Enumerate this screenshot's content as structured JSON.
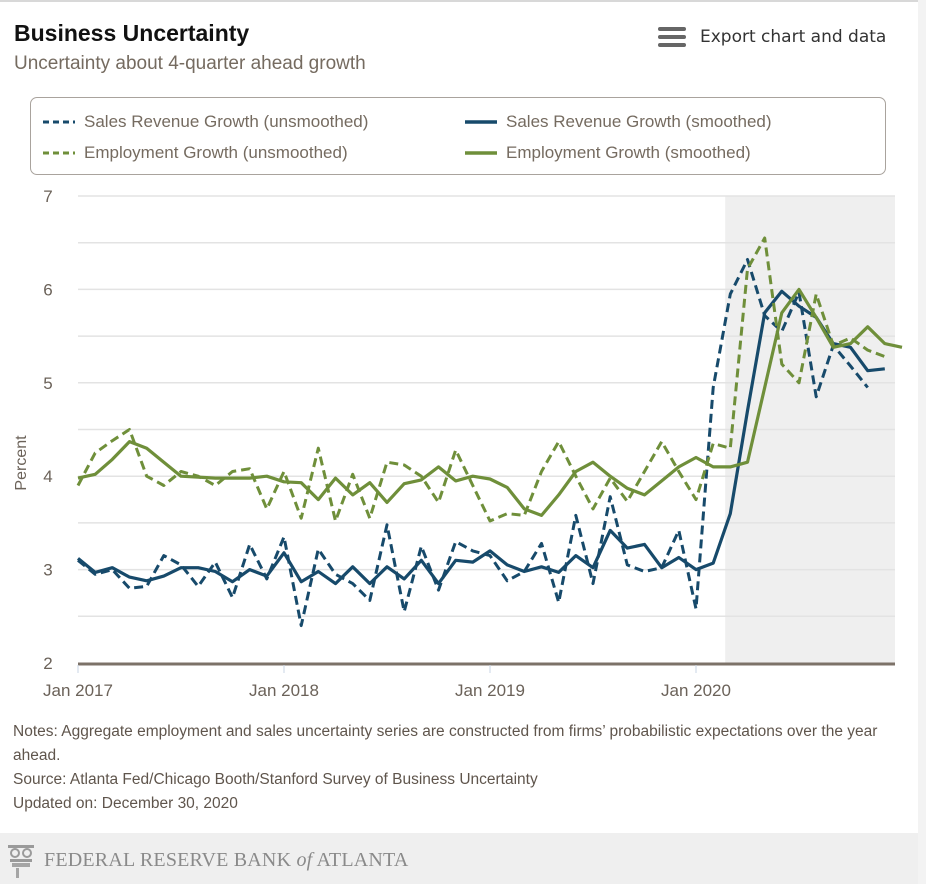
{
  "header": {
    "title": "Business Uncertainty",
    "subtitle": "Uncertainty about 4-quarter ahead growth",
    "export_label": "Export chart and data",
    "export_icon": "hamburger-menu-icon"
  },
  "colors": {
    "sales": "#174a6b",
    "employment": "#6f8f3a",
    "recession_shade": "#efefef",
    "axis_text": "#6b6259",
    "axis_line": "#7c7268"
  },
  "chart_data": {
    "type": "line",
    "title": "Business Uncertainty",
    "subtitle": "Uncertainty about 4-quarter ahead growth",
    "xlabel": "",
    "ylabel": "Percent",
    "ylim": [
      2,
      7
    ],
    "yticks": [
      "2",
      "3",
      "4",
      "5",
      "6",
      "7"
    ],
    "grid": true,
    "legend_position": "top",
    "xticks": [
      "Jan 2017",
      "Jan 2018",
      "Jan 2019",
      "Jan 2020"
    ],
    "x_start": "Jan 2017",
    "x_frequency": "monthly",
    "shaded_period": {
      "from_month_index": 37.7,
      "to_month_index": 47.1,
      "label": "2020 period"
    },
    "series": [
      {
        "name": "Sales Revenue Growth (unsmoothed)",
        "style": "dashed",
        "color": "#174a6b",
        "values": [
          3.1,
          2.95,
          3.0,
          2.8,
          2.82,
          3.15,
          3.05,
          2.82,
          3.08,
          2.7,
          3.27,
          2.9,
          3.35,
          2.4,
          3.22,
          2.95,
          2.85,
          2.67,
          3.48,
          2.55,
          3.25,
          2.78,
          3.3,
          3.2,
          3.15,
          2.88,
          2.98,
          3.28,
          2.65,
          3.58,
          2.85,
          3.78,
          3.05,
          2.98,
          3.02,
          3.42,
          2.58,
          4.95,
          5.95,
          6.32,
          5.72,
          5.55,
          5.97,
          4.85,
          5.4,
          5.18,
          4.95
        ]
      },
      {
        "name": "Sales Revenue Growth (smoothed)",
        "style": "solid",
        "color": "#174a6b",
        "values": [
          3.12,
          2.97,
          3.02,
          2.92,
          2.88,
          2.93,
          3.02,
          3.02,
          2.98,
          2.87,
          3.0,
          2.93,
          3.18,
          2.87,
          2.98,
          2.85,
          3.03,
          2.85,
          3.03,
          2.9,
          3.1,
          2.85,
          3.1,
          3.08,
          3.2,
          3.05,
          2.98,
          3.03,
          2.97,
          3.15,
          3.02,
          3.42,
          3.23,
          3.27,
          3.02,
          3.13,
          3.0,
          3.07,
          3.6,
          4.7,
          5.75,
          5.98,
          5.82,
          5.7,
          5.42,
          5.38,
          5.13,
          5.15
        ]
      },
      {
        "name": "Employment Growth (unsmoothed)",
        "style": "dashed",
        "color": "#6f8f3a",
        "values": [
          3.9,
          4.25,
          4.38,
          4.5,
          4.0,
          3.9,
          4.05,
          4.0,
          3.9,
          4.05,
          4.08,
          3.65,
          4.05,
          3.55,
          4.3,
          3.52,
          4.02,
          3.55,
          4.15,
          4.12,
          4.0,
          3.72,
          4.28,
          3.9,
          3.52,
          3.6,
          3.58,
          4.05,
          4.37,
          4.0,
          3.65,
          3.98,
          3.73,
          4.05,
          4.37,
          4.05,
          3.75,
          4.35,
          4.3,
          6.22,
          6.55,
          5.2,
          5.0,
          5.95,
          5.4,
          5.48,
          5.35,
          5.28
        ]
      },
      {
        "name": "Employment Growth (smoothed)",
        "style": "solid",
        "color": "#6f8f3a",
        "values": [
          3.98,
          4.02,
          4.18,
          4.37,
          4.3,
          4.15,
          4.0,
          3.99,
          3.98,
          3.98,
          3.98,
          4.0,
          3.94,
          3.93,
          3.75,
          3.98,
          3.8,
          3.93,
          3.72,
          3.92,
          3.96,
          4.1,
          3.95,
          4.0,
          3.97,
          3.88,
          3.65,
          3.58,
          3.8,
          4.05,
          4.15,
          4.0,
          3.87,
          3.8,
          3.95,
          4.1,
          4.2,
          4.1,
          4.1,
          4.15,
          4.95,
          5.75,
          6.0,
          5.7,
          5.38,
          5.42,
          5.6,
          5.42,
          5.38
        ]
      }
    ]
  },
  "legend": [
    {
      "label": "Sales Revenue Growth (unsmoothed)",
      "style": "dashed",
      "color": "#174a6b"
    },
    {
      "label": "Sales Revenue Growth (smoothed)",
      "style": "solid",
      "color": "#174a6b"
    },
    {
      "label": "Employment Growth (unsmoothed)",
      "style": "dashed",
      "color": "#6f8f3a"
    },
    {
      "label": "Employment Growth (smoothed)",
      "style": "solid",
      "color": "#6f8f3a"
    }
  ],
  "notes": {
    "notes": "Notes: Aggregate employment and sales uncertainty series are constructed from firms’ probabilistic expectations over the year ahead.",
    "source": "Source: Atlanta Fed/Chicago Booth/Stanford Survey of Business Uncertainty",
    "updated": "Updated on: December 30, 2020"
  },
  "footer": {
    "logo_main": "FEDERAL RESERVE BANK ",
    "logo_of": "of",
    "logo_city": " ATLANTA",
    "logo_icon": "column-capital-icon"
  }
}
